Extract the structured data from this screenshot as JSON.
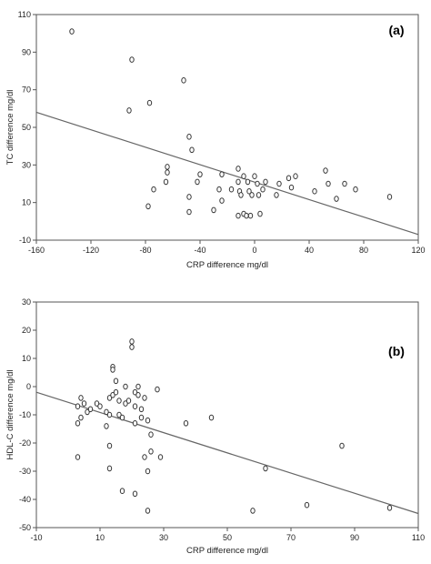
{
  "chart_data": [
    {
      "type": "scatter",
      "panel": "(a)",
      "xlabel": "CRP difference mg/dl",
      "ylabel": "TC difference mg/dl",
      "xlim": [
        -160,
        120
      ],
      "ylim": [
        -10,
        110
      ],
      "xticks": [
        -160,
        -120,
        -80,
        -40,
        0,
        40,
        80,
        120
      ],
      "yticks": [
        -10,
        10,
        30,
        50,
        70,
        90,
        110
      ],
      "grid": false,
      "points": [
        [
          -134,
          101
        ],
        [
          -90,
          86
        ],
        [
          -92,
          59
        ],
        [
          -77,
          63
        ],
        [
          -52,
          75
        ],
        [
          -48,
          45
        ],
        [
          -46,
          38
        ],
        [
          -64,
          29
        ],
        [
          -64,
          26
        ],
        [
          -65,
          21
        ],
        [
          -74,
          17
        ],
        [
          -78,
          8
        ],
        [
          -40,
          25
        ],
        [
          -42,
          21
        ],
        [
          -48,
          13
        ],
        [
          -48,
          5
        ],
        [
          -30,
          6
        ],
        [
          -24,
          25
        ],
        [
          -26,
          17
        ],
        [
          -24,
          11
        ],
        [
          -17,
          17
        ],
        [
          -12,
          28
        ],
        [
          -12,
          21
        ],
        [
          -11,
          16
        ],
        [
          -10,
          14
        ],
        [
          -8,
          24
        ],
        [
          -5,
          21
        ],
        [
          -4,
          16
        ],
        [
          -2,
          14
        ],
        [
          0,
          24
        ],
        [
          2,
          20
        ],
        [
          3,
          14
        ],
        [
          6,
          17
        ],
        [
          8,
          21
        ],
        [
          -12,
          3
        ],
        [
          -8,
          4
        ],
        [
          -6,
          3
        ],
        [
          -3,
          3
        ],
        [
          4,
          4
        ],
        [
          16,
          14
        ],
        [
          18,
          20
        ],
        [
          25,
          23
        ],
        [
          27,
          18
        ],
        [
          30,
          24
        ],
        [
          44,
          16
        ],
        [
          52,
          27
        ],
        [
          54,
          20
        ],
        [
          60,
          12
        ],
        [
          66,
          20
        ],
        [
          74,
          17
        ],
        [
          99,
          13
        ]
      ],
      "fit_line": [
        [
          -160,
          58
        ],
        [
          120,
          -7
        ]
      ]
    },
    {
      "type": "scatter",
      "panel": "(b)",
      "xlabel": "CRP difference mg/dl",
      "ylabel": "HDL-C difference mg/dl",
      "xlim": [
        -10,
        110
      ],
      "ylim": [
        -50,
        30
      ],
      "xticks": [
        -10,
        10,
        30,
        50,
        70,
        90,
        110
      ],
      "yticks": [
        -50,
        -40,
        -30,
        -20,
        -10,
        0,
        10,
        20,
        30
      ],
      "grid": false,
      "points": [
        [
          3,
          -7
        ],
        [
          4,
          -4
        ],
        [
          5,
          -6
        ],
        [
          3,
          -13
        ],
        [
          4,
          -11
        ],
        [
          6,
          -9
        ],
        [
          7,
          -8
        ],
        [
          9,
          -6
        ],
        [
          10,
          -7
        ],
        [
          12,
          -9
        ],
        [
          12,
          -14
        ],
        [
          13,
          -4
        ],
        [
          13,
          -10
        ],
        [
          14,
          7
        ],
        [
          14,
          6
        ],
        [
          14,
          -3
        ],
        [
          15,
          2
        ],
        [
          15,
          -2
        ],
        [
          16,
          -5
        ],
        [
          16,
          -10
        ],
        [
          17,
          -11
        ],
        [
          18,
          0
        ],
        [
          18,
          -6
        ],
        [
          19,
          -5
        ],
        [
          20,
          16
        ],
        [
          20,
          14
        ],
        [
          21,
          -2
        ],
        [
          21,
          -7
        ],
        [
          21,
          -13
        ],
        [
          22,
          0
        ],
        [
          22,
          -3
        ],
        [
          23,
          -8
        ],
        [
          23,
          -11
        ],
        [
          24,
          -4
        ],
        [
          25,
          -12
        ],
        [
          26,
          -17
        ],
        [
          26,
          -23
        ],
        [
          28,
          -1
        ],
        [
          29,
          -25
        ],
        [
          24,
          -25
        ],
        [
          13,
          -21
        ],
        [
          13,
          -29
        ],
        [
          17,
          -37
        ],
        [
          21,
          -38
        ],
        [
          25,
          -30
        ],
        [
          25,
          -44
        ],
        [
          3,
          -25
        ],
        [
          37,
          -13
        ],
        [
          45,
          -11
        ],
        [
          62,
          -29
        ],
        [
          58,
          -44
        ],
        [
          75,
          -42
        ],
        [
          86,
          -21
        ],
        [
          101,
          -43
        ]
      ],
      "fit_line": [
        [
          -10,
          -2
        ],
        [
          110,
          -45
        ]
      ]
    }
  ]
}
